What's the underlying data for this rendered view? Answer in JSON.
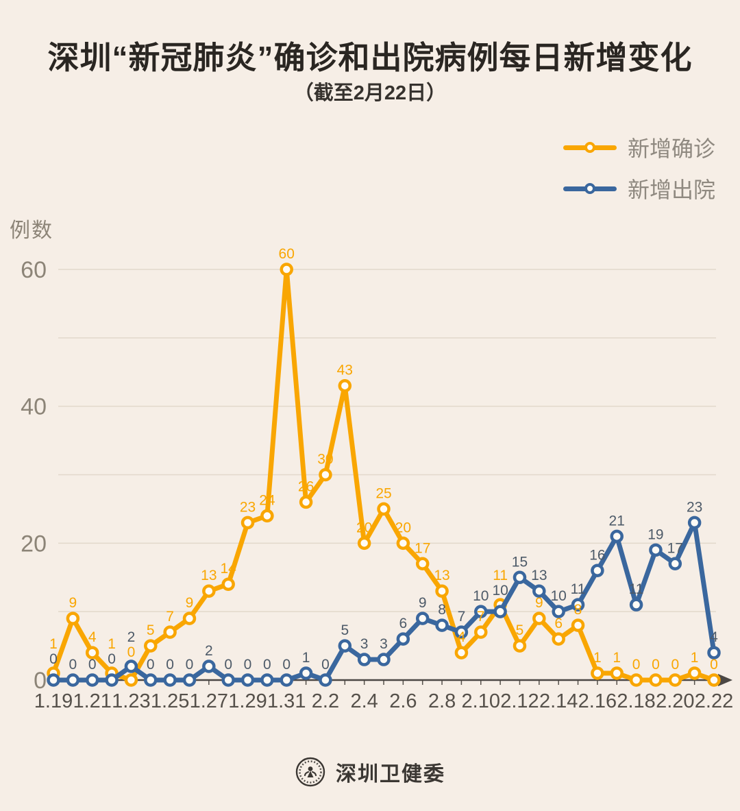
{
  "header": {
    "title": "深圳“新冠肺炎”确诊和出院病例每日新增变化",
    "subtitle": "（截至2月22日）"
  },
  "legend": {
    "items": [
      {
        "label": "新增确诊",
        "color": "#F9A602"
      },
      {
        "label": "新增出院",
        "color": "#3A679E"
      }
    ]
  },
  "footer": {
    "org": "深圳卫健委",
    "logo": "szhc-seal-person-icon"
  },
  "colors": {
    "background": "#F6EEE6",
    "confirmed": "#F9A602",
    "discharged": "#3A679E",
    "confirmed_label": "#F9A602",
    "discharged_label": "#4D5A68",
    "axis": "#4B4744",
    "gridline": "#E2D8CB",
    "tick_label": "#55504A",
    "y_tick_label": "#8C8477",
    "marker_fill": "#FEFBF6"
  },
  "chart_data": {
    "type": "line",
    "title": "深圳“新冠肺炎”确诊和出院病例每日新增变化",
    "subtitle": "（截至2月22日）",
    "ylabel": "例数",
    "xlabel": "",
    "ylim": [
      0,
      62
    ],
    "yticks": [
      0,
      20,
      40,
      60
    ],
    "grid_step": 10,
    "grid": "horizontal",
    "legend_position": "top-right",
    "x_tick_every": 2,
    "x": [
      "1.19",
      "1.20",
      "1.21",
      "1.22",
      "1.23",
      "1.24",
      "1.25",
      "1.26",
      "1.27",
      "1.28",
      "1.29",
      "1.30",
      "1.31",
      "2.1",
      "2.2",
      "2.3",
      "2.4",
      "2.5",
      "2.6",
      "2.7",
      "2.8",
      "2.9",
      "2.10",
      "2.11",
      "2.12",
      "2.13",
      "2.14",
      "2.15",
      "2.16",
      "2.17",
      "2.18",
      "2.19",
      "2.20",
      "2.21",
      "2.22"
    ],
    "series": [
      {
        "name": "新增确诊",
        "color": "#F9A602",
        "label_color": "#F9A602",
        "values": [
          1,
          9,
          4,
          1,
          0,
          5,
          7,
          9,
          13,
          14,
          23,
          24,
          60,
          26,
          30,
          43,
          20,
          25,
          20,
          17,
          13,
          4,
          7,
          11,
          5,
          9,
          6,
          8,
          1,
          1,
          0,
          0,
          0,
          1,
          0
        ]
      },
      {
        "name": "新增出院",
        "color": "#3A679E",
        "label_color": "#4D5A68",
        "values": [
          0,
          0,
          0,
          0,
          2,
          0,
          0,
          0,
          2,
          0,
          0,
          0,
          0,
          1,
          0,
          5,
          3,
          3,
          6,
          9,
          8,
          7,
          10,
          10,
          15,
          13,
          10,
          11,
          16,
          21,
          11,
          19,
          17,
          23,
          4
        ]
      }
    ]
  }
}
